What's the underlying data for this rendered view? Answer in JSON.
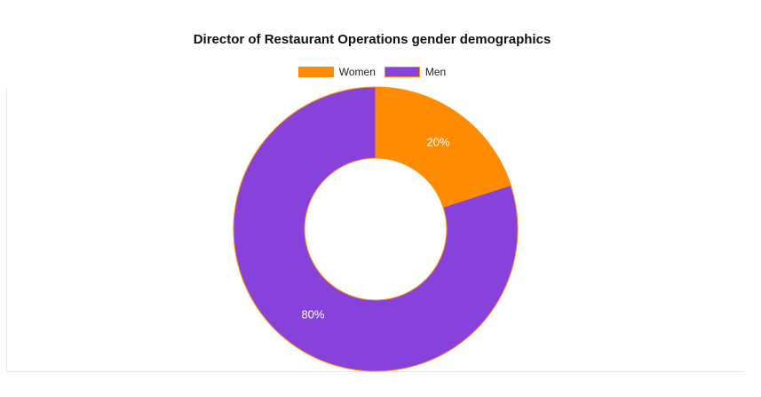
{
  "chart_data": {
    "type": "pie",
    "variant": "doughnut",
    "title": "Director of Restaurant Operations gender demographics",
    "categories": [
      "Women",
      "Men"
    ],
    "values": [
      20,
      80
    ],
    "labels": [
      "20%",
      "80%"
    ],
    "colors": [
      "#ff8c00",
      "#8842dc"
    ],
    "slice_border_color": "#ff8c00",
    "legend_position": "top",
    "start_angle": "top, clockwise"
  }
}
